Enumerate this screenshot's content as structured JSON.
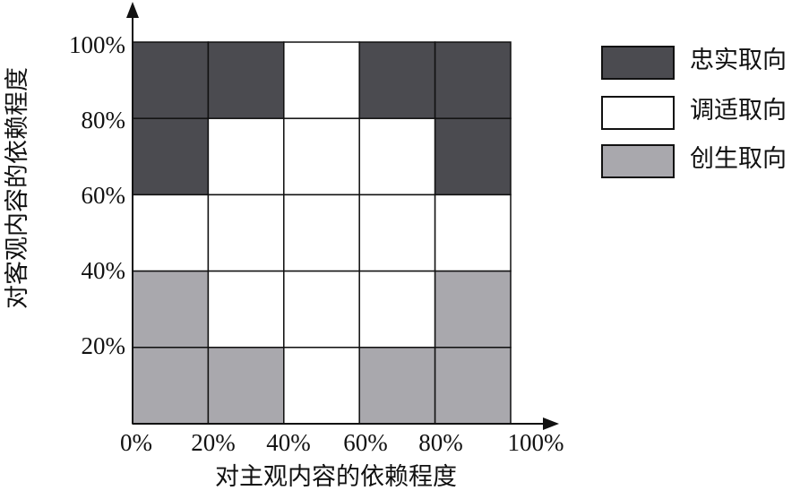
{
  "y_axis": {
    "title": "对客观内容的依赖程度",
    "ticks": [
      "100%",
      "80%",
      "60%",
      "40%",
      "20%"
    ]
  },
  "x_axis": {
    "title": "对主观内容的依赖程度",
    "ticks": [
      "0%",
      "20%",
      "40%",
      "60%",
      "80%",
      "100%"
    ]
  },
  "legend": [
    {
      "label": "忠实取向",
      "color": "#4b4b50"
    },
    {
      "label": "调适取向",
      "color": "#ffffff"
    },
    {
      "label": "创生取向",
      "color": "#a9a8ad"
    }
  ]
}
